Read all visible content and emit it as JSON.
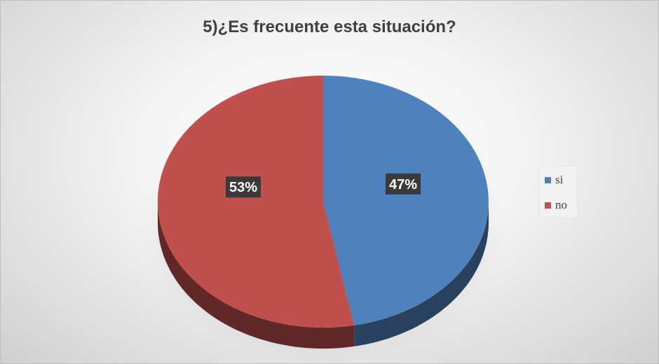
{
  "chart_data": {
    "type": "pie",
    "title": "5)¿Es frecuente esta situación?",
    "categories": [
      "si",
      "no"
    ],
    "values": [
      47,
      53
    ],
    "value_labels": [
      "47%",
      "53%"
    ],
    "colors": [
      "#4f81bd",
      "#c0504d"
    ],
    "legend_position": "right",
    "style": "3d"
  }
}
